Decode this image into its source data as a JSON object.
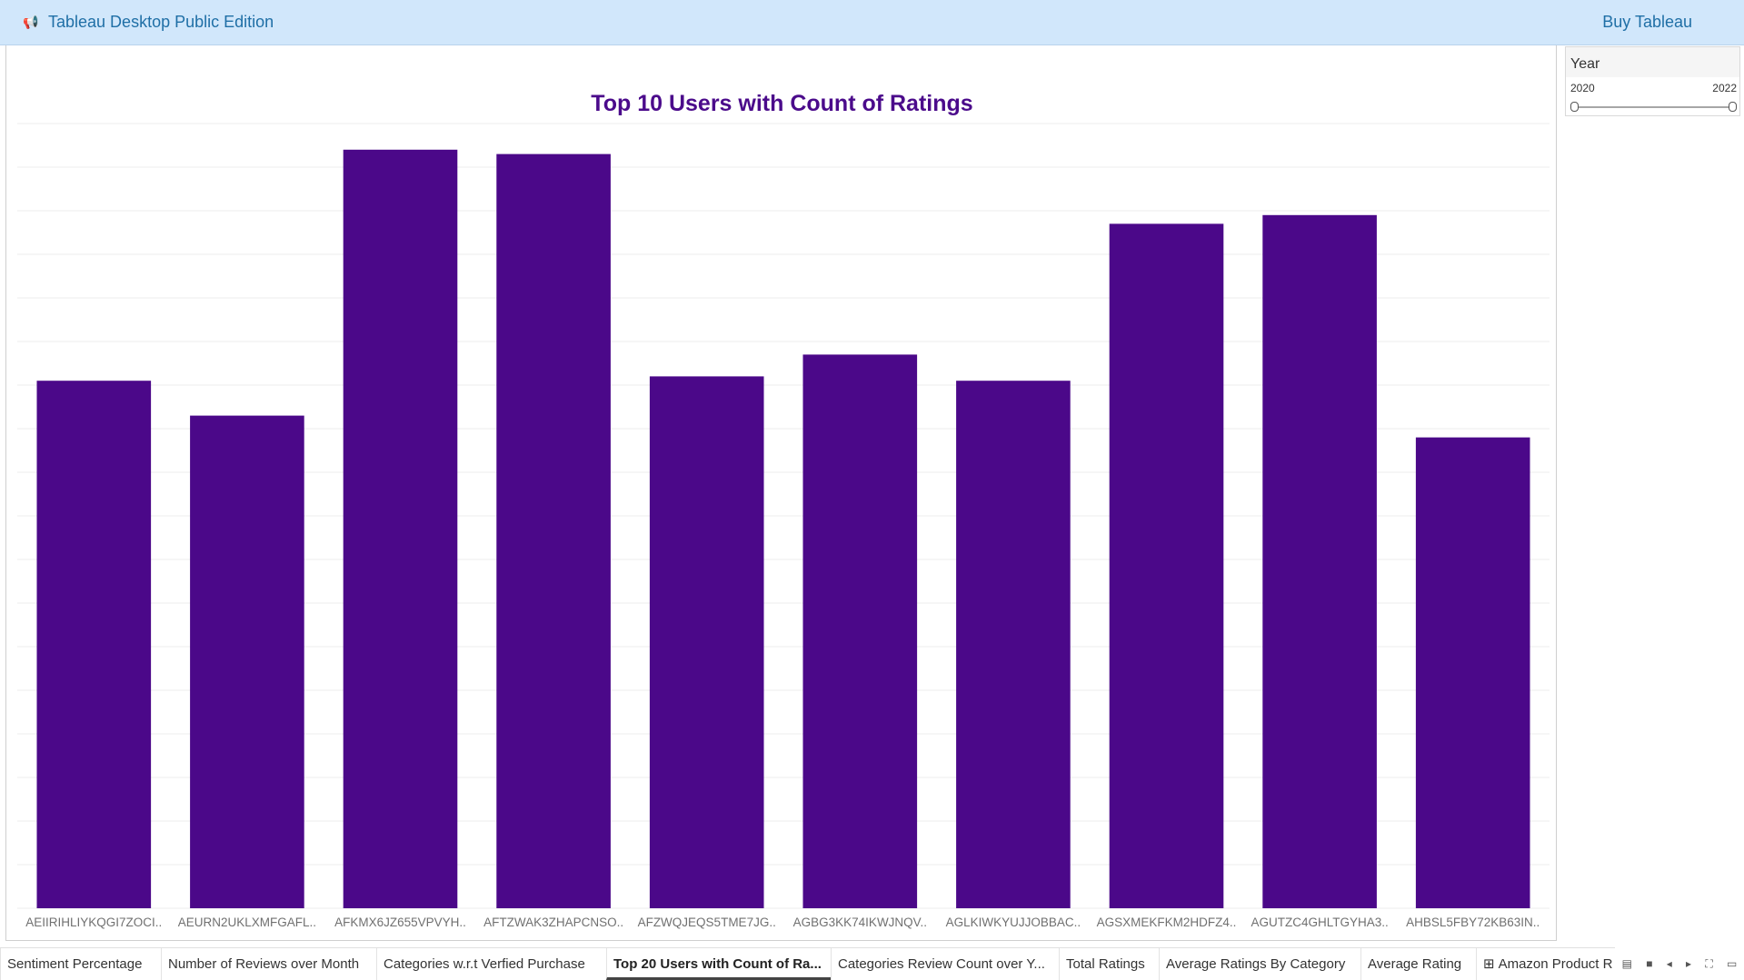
{
  "topbar": {
    "app_title": "Tableau Desktop Public Edition",
    "buy_label": "Buy Tableau",
    "icon": "megaphone-icon"
  },
  "filter": {
    "title": "Year",
    "min_label": "2020",
    "max_label": "2022"
  },
  "tabs": [
    {
      "label": "Sentiment Percentage"
    },
    {
      "label": "Number of Reviews over Month"
    },
    {
      "label": "Categories w.r.t Verfied Purchase"
    },
    {
      "label": "Top 20 Users with Count of Ra..."
    },
    {
      "label": "Categories Review Count over Y..."
    },
    {
      "label": "Total Ratings"
    },
    {
      "label": "Average Ratings By Category"
    },
    {
      "label": "Average Rating"
    },
    {
      "label": "Amazon Product R",
      "icon": "dashboard-grid-icon"
    }
  ],
  "active_tab": 3,
  "nav_icons": [
    "tab-list-icon",
    "filmstrip-icon",
    "prev-icon",
    "next-icon",
    "fullscreen-icon",
    "present-icon"
  ],
  "colors": {
    "bar": "#4b0889",
    "title": "#4b0b8b",
    "topbar_bg": "#d1e7fb",
    "gridline": "#ececec"
  },
  "chart_data": {
    "type": "bar",
    "title": "Top 10 Users with Count of Ratings",
    "categories": [
      "AEIIRIHLIYKQGI7ZOCI..",
      "AEURN2UKLXMFGAFL..",
      "AFKMX6JZ655VPVYH..",
      "AFTZWAK3ZHAPCNSO..",
      "AFZWQJEQS5TME7JG..",
      "AGBG3KK74IKWJNQV..",
      "AGLKIWKYUJJOBBAC..",
      "AGSXMEKFKM2HDFZ4..",
      "AGUTZC4GHLTGYHA3..",
      "AHBSL5FBY72KB63IN.."
    ],
    "values": [
      121,
      113,
      174,
      173,
      122,
      127,
      121,
      157,
      159,
      108
    ],
    "ylim": [
      0,
      180
    ],
    "xlabel": "",
    "ylabel": "",
    "grid": true,
    "axis_labels_visible": false
  }
}
